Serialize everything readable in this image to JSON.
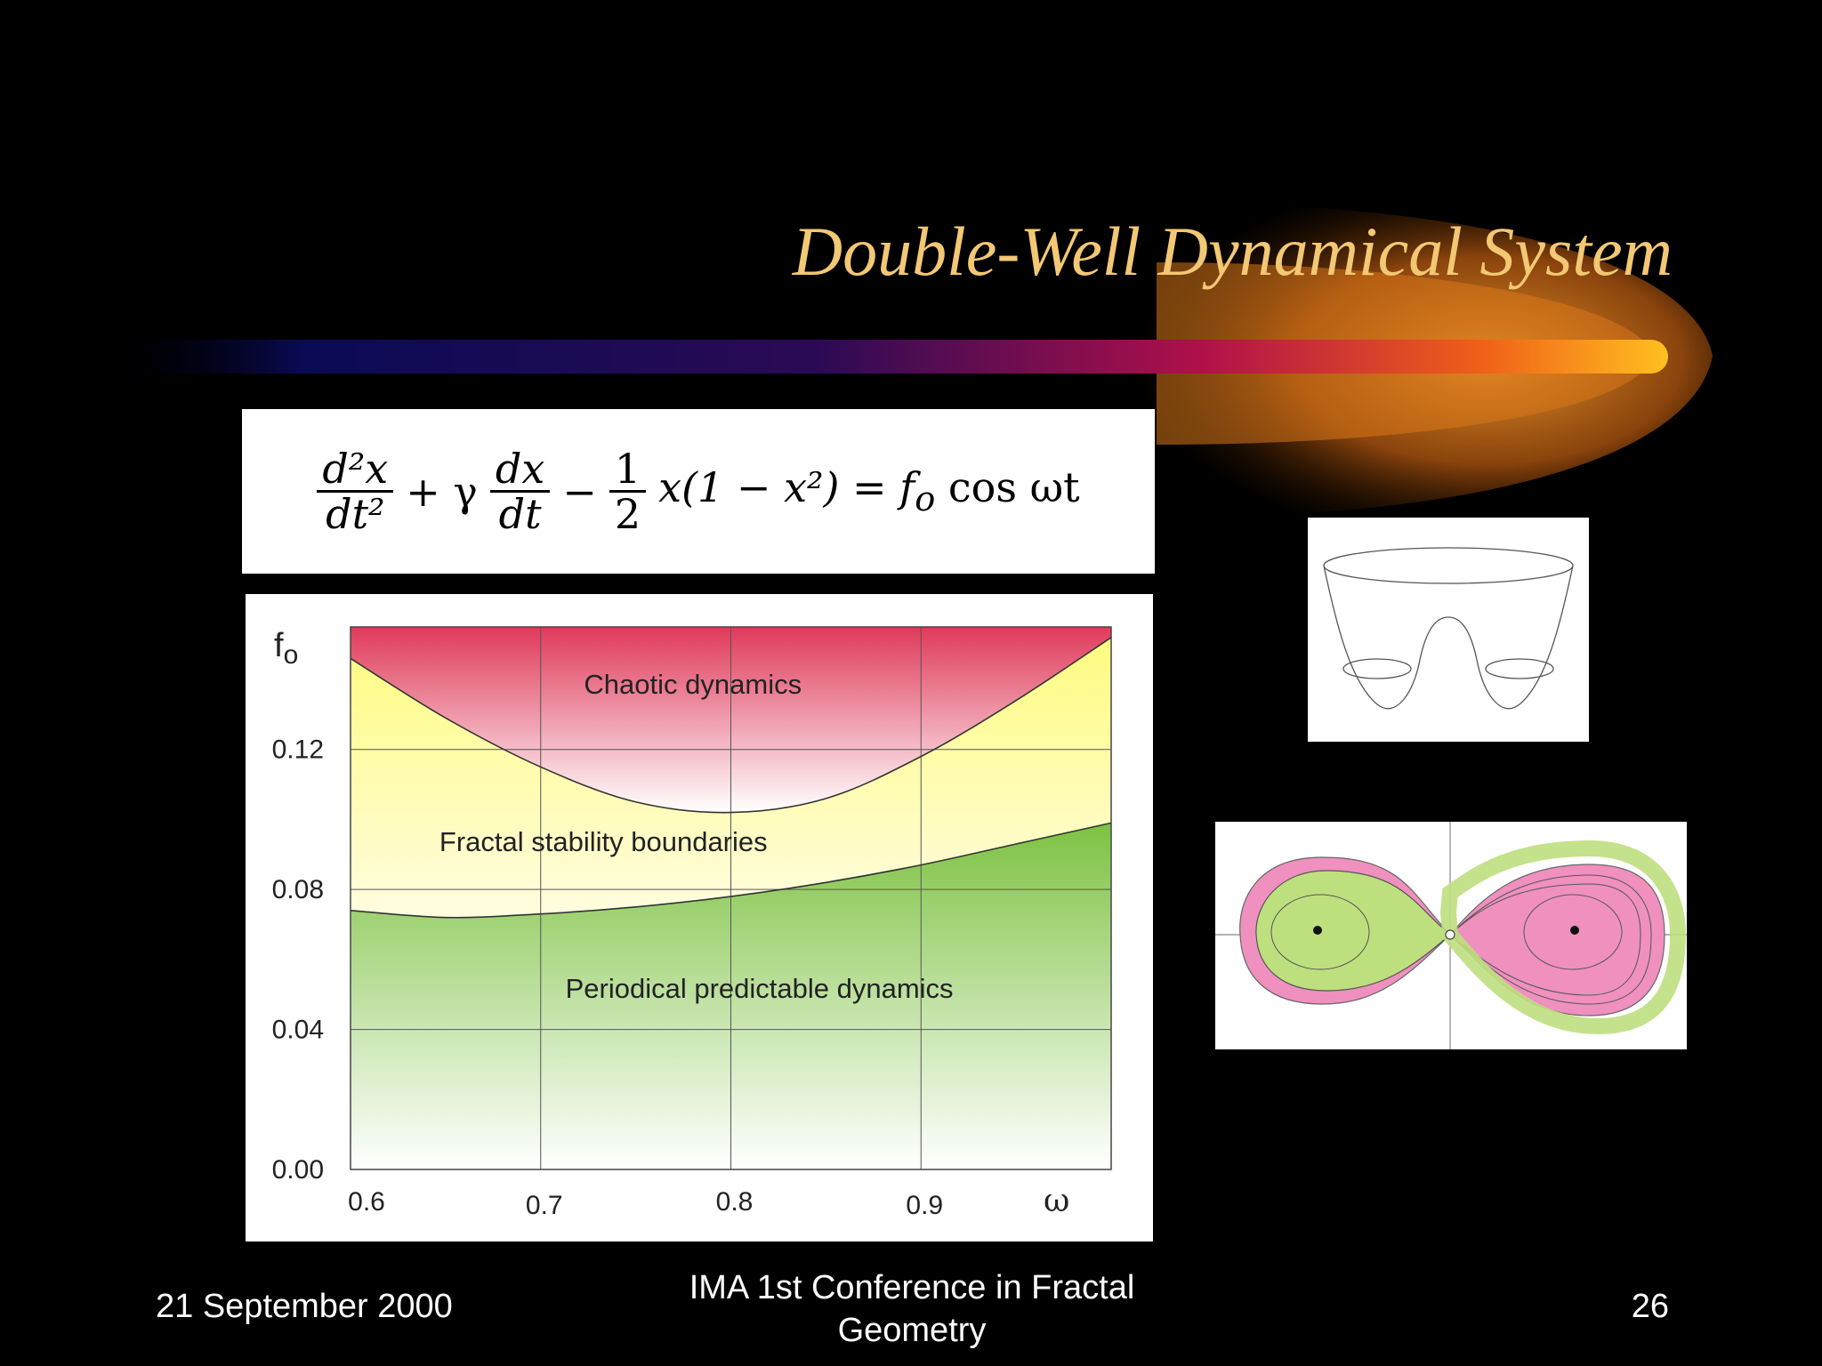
{
  "slide": {
    "title": "Double-Well Dynamical System",
    "footer": {
      "date": "21 September 2000",
      "conference": "IMA 1st Conference in Fractal Geometry",
      "page": "26"
    }
  },
  "equation": {
    "t1_num": "d²x",
    "t1_den": "dt²",
    "op1": "+ γ",
    "t2_num": "dx",
    "t2_den": "dt",
    "op2": "−",
    "t3_num": "1",
    "t3_den": "2",
    "rest": "x(1 − x²) = f",
    "sub": "o",
    "tail": " cos ωt"
  },
  "chart_data": {
    "type": "area",
    "xlabel": "ω",
    "ylabel": "f",
    "ylabel_sub": "o",
    "xlim": [
      0.6,
      1.0
    ],
    "ylim": [
      0.0,
      0.155
    ],
    "x_ticks": [
      "0.6",
      "0.7",
      "0.8",
      "0.9"
    ],
    "y_ticks": [
      "0.12",
      "0.08",
      "0.04",
      "0.00"
    ],
    "x_tick_values": [
      0.6,
      0.7,
      0.8,
      0.9
    ],
    "y_tick_values": [
      0.12,
      0.08,
      0.04,
      0.0
    ],
    "grid": true,
    "boundaries": [
      {
        "name": "chaos_onset",
        "x": [
          0.6,
          0.65,
          0.7,
          0.75,
          0.8,
          0.85,
          0.9,
          0.95,
          1.0
        ],
        "y": [
          0.146,
          0.129,
          0.115,
          0.105,
          0.102,
          0.106,
          0.118,
          0.134,
          0.152
        ]
      },
      {
        "name": "stability_loss",
        "x": [
          0.6,
          0.65,
          0.7,
          0.75,
          0.8,
          0.85,
          0.9,
          0.95,
          1.0
        ],
        "y": [
          0.074,
          0.072,
          0.073,
          0.075,
          0.078,
          0.082,
          0.087,
          0.093,
          0.099
        ]
      }
    ],
    "regions": [
      {
        "label": "Chaotic dynamics",
        "color": "#e03a5a",
        "label_x": 0.78,
        "label_y": 0.136
      },
      {
        "label": "Fractal stability boundaries",
        "color": "#fffb80",
        "label_x": 0.733,
        "label_y": 0.091
      },
      {
        "label": "Periodical predictable dynamics",
        "color": "#7dc242",
        "label_x": 0.815,
        "label_y": 0.049
      }
    ]
  },
  "colors": {
    "title": "#f3c874",
    "chaos": "#e03a5a",
    "fractal": "#fffb80",
    "periodic": "#7dc242",
    "phase_pink": "#ef90bf",
    "phase_green": "#bedf7e"
  },
  "insets": {
    "well_icon": "double-well-potential-surface",
    "phase_icon": "phase-portrait-basins"
  }
}
